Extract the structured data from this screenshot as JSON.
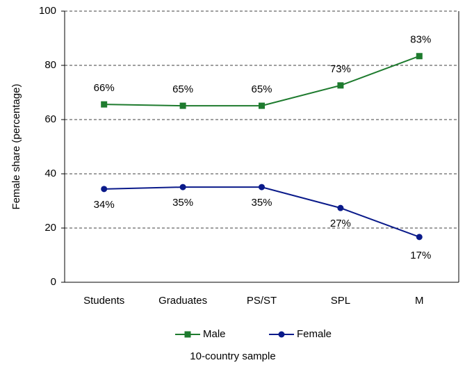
{
  "chart_data": {
    "type": "line",
    "categories": [
      "Students",
      "Graduates",
      "PS/ST",
      "SPL",
      "M"
    ],
    "series": [
      {
        "name": "Male",
        "color": "#1e7b2e",
        "marker": "square",
        "values": [
          65.6,
          65.1,
          65.1,
          72.6,
          83.4
        ],
        "value_labels": [
          "66%",
          "65%",
          "65%",
          "73%",
          "83%"
        ]
      },
      {
        "name": "Female",
        "color": "#0a1a8a",
        "marker": "circle",
        "values": [
          34.4,
          35.1,
          35.1,
          27.4,
          16.7
        ],
        "value_labels": [
          "34%",
          "35%",
          "35%",
          "27%",
          "17%"
        ]
      }
    ],
    "ylim": [
      0,
      100
    ],
    "yticks": [
      0,
      20,
      40,
      60,
      80,
      100
    ],
    "grid": true,
    "ylabel": "Female share (percentage)",
    "xlabel": "10-country sample",
    "legend": "bottom"
  }
}
